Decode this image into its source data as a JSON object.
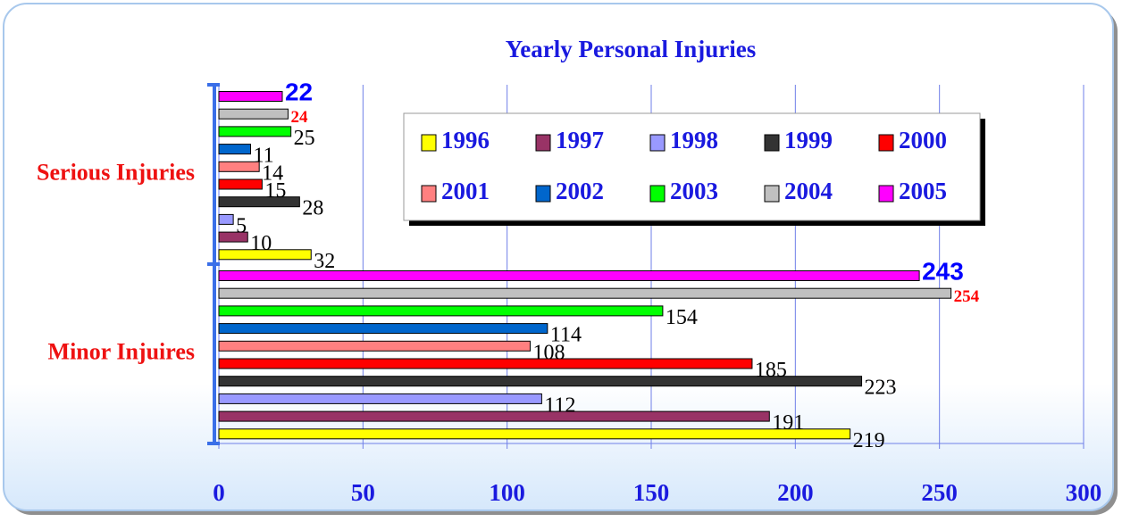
{
  "chart_data": {
    "type": "bar",
    "orientation": "horizontal",
    "title": "Yearly Personal Injuries",
    "categories": [
      "Serious Injuries",
      "Minor Injuires"
    ],
    "series": [
      {
        "name": "1996",
        "color": "#ffff00",
        "values": [
          32,
          219
        ]
      },
      {
        "name": "1997",
        "color": "#993366",
        "values": [
          10,
          191
        ]
      },
      {
        "name": "1998",
        "color": "#9999ff",
        "values": [
          5,
          112
        ]
      },
      {
        "name": "1999",
        "color": "#333333",
        "values": [
          28,
          223
        ]
      },
      {
        "name": "2000",
        "color": "#ff0000",
        "values": [
          15,
          185
        ]
      },
      {
        "name": "2001",
        "color": "#ff8080",
        "values": [
          14,
          108
        ]
      },
      {
        "name": "2002",
        "color": "#0066cc",
        "values": [
          11,
          114
        ]
      },
      {
        "name": "2003",
        "color": "#00ff00",
        "values": [
          25,
          154
        ]
      },
      {
        "name": "2004",
        "color": "#c0c0c0",
        "values": [
          24,
          254
        ],
        "label_color": "#ff0000"
      },
      {
        "name": "2005",
        "color": "#ff00ff",
        "values": [
          22,
          243
        ],
        "label_color": "#0000ff"
      }
    ],
    "xlim": [
      0,
      300
    ],
    "xticks": [
      0,
      50,
      100,
      150,
      200,
      250,
      300
    ],
    "grid": true,
    "legend_position": "top-right"
  }
}
